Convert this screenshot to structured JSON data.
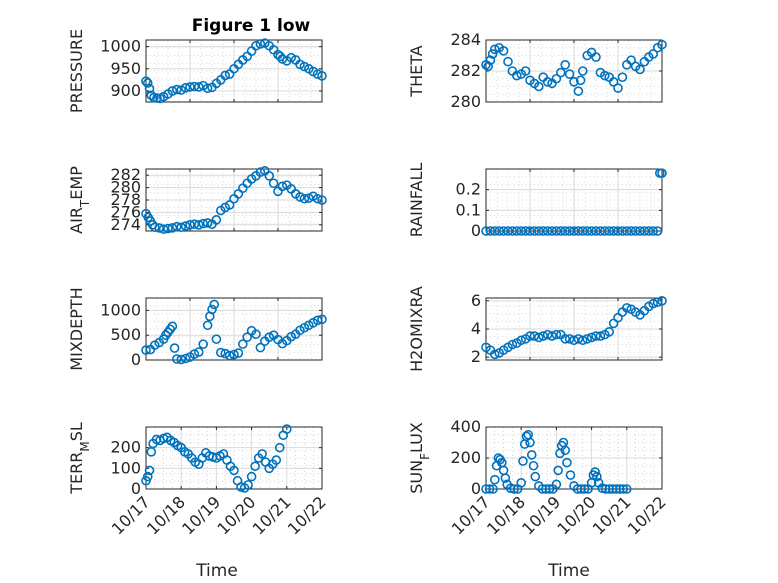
{
  "figure": {
    "title": "Figure 1 low"
  },
  "chart_data": [
    {
      "type": "scatter",
      "name": "PRESSURE",
      "ylabel": "PRESSURE",
      "xlabel": "",
      "title": "Figure 1 low",
      "xlim": [
        "10/17",
        "10/21"
      ],
      "ylim": [
        875,
        1015
      ],
      "yticks": [
        900,
        950,
        1000
      ],
      "ytick_labels": [
        "900",
        "950",
        "1000"
      ],
      "xtick_labels": [
        "10/17",
        "10/18",
        "10/19",
        "10/20",
        "10/21"
      ],
      "grid": true,
      "x": [
        0,
        0.04,
        0.08,
        0.12,
        0.18,
        0.25,
        0.32,
        0.4,
        0.5,
        0.6,
        0.7,
        0.8,
        0.9,
        1.0,
        1.1,
        1.2,
        1.3,
        1.4,
        1.5,
        1.6,
        1.7,
        1.8,
        1.9,
        2.0,
        2.1,
        2.2,
        2.3,
        2.4,
        2.5,
        2.6,
        2.7,
        2.8,
        2.9,
        3.0,
        3.05,
        3.1,
        3.2,
        3.3,
        3.4,
        3.5,
        3.6,
        3.7,
        3.8,
        3.9,
        4.0
      ],
      "y": [
        922,
        918,
        905,
        890,
        885,
        884,
        883,
        887,
        893,
        900,
        903,
        902,
        907,
        909,
        910,
        909,
        912,
        906,
        908,
        917,
        925,
        935,
        938,
        950,
        960,
        970,
        978,
        990,
        1002,
        1006,
        1008,
        1002,
        993,
        982,
        978,
        972,
        968,
        975,
        970,
        960,
        955,
        950,
        944,
        938,
        934
      ]
    },
    {
      "type": "scatter",
      "name": "THETA",
      "ylabel": "THETA",
      "xlabel": "",
      "xlim": [
        "10/17",
        "10/21"
      ],
      "ylim": [
        280,
        284
      ],
      "yticks": [
        280,
        282,
        284
      ],
      "ytick_labels": [
        "280",
        "282",
        "284"
      ],
      "xtick_labels": [
        "10/17",
        "10/18",
        "10/19",
        "10/20",
        "10/21"
      ],
      "grid": true,
      "x": [
        0,
        0.05,
        0.1,
        0.15,
        0.2,
        0.3,
        0.4,
        0.5,
        0.6,
        0.7,
        0.8,
        0.9,
        1.0,
        1.1,
        1.2,
        1.3,
        1.4,
        1.5,
        1.6,
        1.7,
        1.8,
        1.9,
        2.0,
        2.1,
        2.15,
        2.2,
        2.3,
        2.4,
        2.5,
        2.6,
        2.7,
        2.8,
        2.9,
        3.0,
        3.1,
        3.2,
        3.3,
        3.4,
        3.5,
        3.6,
        3.7,
        3.8,
        3.9,
        4.0
      ],
      "y": [
        282.4,
        282.3,
        282.7,
        283.1,
        283.4,
        283.5,
        283.3,
        282.6,
        282.0,
        281.7,
        281.8,
        282.0,
        281.4,
        281.2,
        281.0,
        281.6,
        281.3,
        281.2,
        281.5,
        281.9,
        282.4,
        281.8,
        281.3,
        280.7,
        281.4,
        282.0,
        283.0,
        283.2,
        282.9,
        281.9,
        281.7,
        281.6,
        281.3,
        280.9,
        281.6,
        282.4,
        282.7,
        282.3,
        282.1,
        282.6,
        282.9,
        283.1,
        283.5,
        283.7
      ]
    },
    {
      "type": "scatter",
      "name": "AIR_TEMP",
      "ylabel": "AIR_TEMP",
      "xlabel": "",
      "xlim": [
        "10/17",
        "10/21"
      ],
      "ylim": [
        273,
        283
      ],
      "yticks": [
        274,
        276,
        278,
        280,
        282
      ],
      "ytick_labels": [
        "274",
        "276",
        "278",
        "280",
        "282"
      ],
      "xtick_labels": [
        "10/17",
        "10/18",
        "10/19",
        "10/20",
        "10/21"
      ],
      "grid": true,
      "x": [
        0,
        0.05,
        0.1,
        0.15,
        0.2,
        0.3,
        0.4,
        0.5,
        0.6,
        0.7,
        0.8,
        0.9,
        1.0,
        1.1,
        1.2,
        1.3,
        1.4,
        1.5,
        1.6,
        1.7,
        1.8,
        1.9,
        2.0,
        2.1,
        2.2,
        2.3,
        2.4,
        2.5,
        2.6,
        2.7,
        2.8,
        2.9,
        3.0,
        3.1,
        3.2,
        3.3,
        3.4,
        3.5,
        3.6,
        3.7,
        3.8,
        3.9,
        4.0
      ],
      "y": [
        275.8,
        275.2,
        274.6,
        274.0,
        273.6,
        273.5,
        273.3,
        273.4,
        273.5,
        273.7,
        273.6,
        273.8,
        274.0,
        274.1,
        274.0,
        274.2,
        274.3,
        274.1,
        274.8,
        276.3,
        276.8,
        277.2,
        278.2,
        279.0,
        279.9,
        280.7,
        281.4,
        281.9,
        282.5,
        282.7,
        281.9,
        280.7,
        279.4,
        280.2,
        280.4,
        279.8,
        279.0,
        278.5,
        278.2,
        278.3,
        278.6,
        278.2,
        278.0
      ]
    },
    {
      "type": "scatter",
      "name": "RAINFALL",
      "ylabel": "RAINFALL",
      "xlabel": "",
      "xlim": [
        "10/17",
        "10/21"
      ],
      "ylim": [
        0,
        0.3
      ],
      "yticks": [
        0,
        0.1,
        0.2
      ],
      "ytick_labels": [
        "0",
        "0.1",
        "0.2"
      ],
      "xtick_labels": [
        "10/17",
        "10/18",
        "10/19",
        "10/20",
        "10/21"
      ],
      "grid": true,
      "x": [
        0,
        0.1,
        0.2,
        0.3,
        0.4,
        0.5,
        0.6,
        0.7,
        0.8,
        0.9,
        1.0,
        1.1,
        1.2,
        1.3,
        1.4,
        1.5,
        1.6,
        1.7,
        1.8,
        1.9,
        2.0,
        2.1,
        2.2,
        2.3,
        2.4,
        2.5,
        2.6,
        2.7,
        2.8,
        2.9,
        3.0,
        3.1,
        3.2,
        3.3,
        3.4,
        3.5,
        3.6,
        3.7,
        3.8,
        3.9,
        3.95,
        4.0
      ],
      "y": [
        0,
        0,
        0,
        0,
        0,
        0,
        0,
        0,
        0,
        0,
        0,
        0,
        0,
        0,
        0,
        0,
        0,
        0,
        0,
        0,
        0,
        0,
        0,
        0,
        0,
        0,
        0,
        0,
        0,
        0,
        0,
        0,
        0,
        0,
        0,
        0,
        0,
        0,
        0,
        0,
        0.28,
        0.28
      ]
    },
    {
      "type": "scatter",
      "name": "MIXDEPTH",
      "ylabel": "MIXDEPTH",
      "xlabel": "",
      "xlim": [
        "10/17",
        "10/21"
      ],
      "ylim": [
        0,
        1250
      ],
      "yticks": [
        0,
        500,
        1000
      ],
      "ytick_labels": [
        "0",
        "500",
        "1000"
      ],
      "xtick_labels": [
        "10/17",
        "10/18",
        "10/19",
        "10/20",
        "10/21"
      ],
      "grid": true,
      "x": [
        0,
        0.1,
        0.2,
        0.3,
        0.4,
        0.45,
        0.5,
        0.55,
        0.6,
        0.65,
        0.7,
        0.8,
        0.9,
        1.0,
        1.1,
        1.2,
        1.3,
        1.4,
        1.45,
        1.5,
        1.55,
        1.6,
        1.7,
        1.8,
        1.9,
        2.0,
        2.1,
        2.2,
        2.3,
        2.4,
        2.5,
        2.6,
        2.7,
        2.8,
        2.9,
        3.0,
        3.1,
        3.2,
        3.3,
        3.4,
        3.5,
        3.6,
        3.7,
        3.8,
        3.9,
        4.0
      ],
      "y": [
        200,
        210,
        300,
        350,
        420,
        500,
        560,
        620,
        680,
        240,
        20,
        10,
        30,
        60,
        120,
        160,
        320,
        700,
        880,
        1020,
        1120,
        420,
        150,
        130,
        90,
        110,
        140,
        320,
        460,
        590,
        520,
        250,
        380,
        460,
        500,
        410,
        330,
        390,
        470,
        520,
        600,
        650,
        700,
        750,
        800,
        820
      ]
    },
    {
      "type": "scatter",
      "name": "H2OMIXRA",
      "ylabel": "H2OMIXRA",
      "xlabel": "",
      "xlim": [
        "10/17",
        "10/21"
      ],
      "ylim": [
        1.8,
        6.2
      ],
      "yticks": [
        2,
        4,
        6
      ],
      "ytick_labels": [
        "2",
        "4",
        "6"
      ],
      "xtick_labels": [
        "10/17",
        "10/18",
        "10/19",
        "10/20",
        "10/21"
      ],
      "grid": true,
      "x": [
        0,
        0.1,
        0.2,
        0.3,
        0.4,
        0.5,
        0.6,
        0.7,
        0.8,
        0.9,
        1.0,
        1.1,
        1.2,
        1.3,
        1.4,
        1.5,
        1.6,
        1.7,
        1.8,
        1.9,
        2.0,
        2.1,
        2.2,
        2.3,
        2.4,
        2.5,
        2.6,
        2.7,
        2.8,
        2.9,
        3.0,
        3.1,
        3.2,
        3.3,
        3.4,
        3.5,
        3.6,
        3.7,
        3.8,
        3.9,
        4.0
      ],
      "y": [
        2.7,
        2.5,
        2.2,
        2.3,
        2.5,
        2.7,
        2.9,
        3.0,
        3.2,
        3.3,
        3.5,
        3.5,
        3.4,
        3.5,
        3.6,
        3.5,
        3.6,
        3.6,
        3.3,
        3.3,
        3.2,
        3.3,
        3.2,
        3.3,
        3.4,
        3.5,
        3.5,
        3.6,
        3.8,
        4.4,
        4.8,
        5.2,
        5.5,
        5.4,
        5.2,
        5.0,
        5.3,
        5.6,
        5.8,
        5.9,
        6.0
      ]
    },
    {
      "type": "scatter",
      "name": "TERR_MSL",
      "ylabel": "TERR_MSL",
      "xlabel": "Time",
      "xlim": [
        "10/17",
        "10/22"
      ],
      "ylim": [
        0,
        300
      ],
      "yticks": [
        0,
        100,
        200
      ],
      "ytick_labels": [
        "0",
        "100",
        "200"
      ],
      "xtick_labels": [
        "10/17",
        "10/18",
        "10/19",
        "10/20",
        "10/21",
        "10/22"
      ],
      "grid": true,
      "x": [
        0,
        0.05,
        0.1,
        0.15,
        0.2,
        0.3,
        0.4,
        0.5,
        0.6,
        0.7,
        0.8,
        0.9,
        1.0,
        1.1,
        1.2,
        1.3,
        1.4,
        1.5,
        1.6,
        1.7,
        1.8,
        1.9,
        2.0,
        2.1,
        2.2,
        2.3,
        2.4,
        2.5,
        2.6,
        2.7,
        2.8,
        2.9,
        3.0,
        3.1,
        3.2,
        3.3,
        3.4,
        3.5,
        3.6,
        3.7,
        3.8,
        3.9,
        4.0
      ],
      "y": [
        40,
        60,
        90,
        180,
        220,
        240,
        235,
        245,
        250,
        235,
        225,
        210,
        200,
        180,
        170,
        150,
        130,
        120,
        150,
        175,
        160,
        155,
        150,
        160,
        170,
        140,
        110,
        90,
        40,
        10,
        5,
        20,
        60,
        110,
        150,
        170,
        130,
        100,
        120,
        140,
        200,
        260,
        290
      ]
    },
    {
      "type": "scatter",
      "name": "SUN_FLUX",
      "ylabel": "SUN_FLUX",
      "xlabel": "Time",
      "xlim": [
        "10/17",
        "10/22"
      ],
      "ylim": [
        0,
        400
      ],
      "yticks": [
        0,
        200,
        400
      ],
      "ytick_labels": [
        "0",
        "200",
        "400"
      ],
      "xtick_labels": [
        "10/17",
        "10/18",
        "10/19",
        "10/20",
        "10/21",
        "10/22"
      ],
      "grid": true,
      "x": [
        0,
        0.1,
        0.2,
        0.25,
        0.3,
        0.35,
        0.4,
        0.45,
        0.5,
        0.55,
        0.6,
        0.7,
        0.8,
        0.9,
        1.0,
        1.05,
        1.1,
        1.15,
        1.2,
        1.25,
        1.3,
        1.35,
        1.4,
        1.5,
        1.6,
        1.7,
        1.8,
        1.9,
        2.0,
        2.05,
        2.1,
        2.15,
        2.2,
        2.25,
        2.3,
        2.4,
        2.5,
        2.6,
        2.7,
        2.8,
        2.9,
        3.0,
        3.05,
        3.1,
        3.15,
        3.2,
        3.3,
        3.4,
        3.5,
        3.6,
        3.7,
        3.8,
        3.9,
        4.0
      ],
      "y": [
        0,
        0,
        0,
        60,
        150,
        200,
        190,
        170,
        120,
        70,
        30,
        5,
        0,
        0,
        40,
        180,
        290,
        340,
        350,
        300,
        220,
        150,
        80,
        20,
        0,
        0,
        0,
        0,
        30,
        120,
        230,
        280,
        300,
        250,
        170,
        90,
        20,
        0,
        0,
        0,
        0,
        40,
        90,
        110,
        80,
        40,
        5,
        0,
        0,
        0,
        0,
        0,
        0,
        0
      ]
    }
  ]
}
